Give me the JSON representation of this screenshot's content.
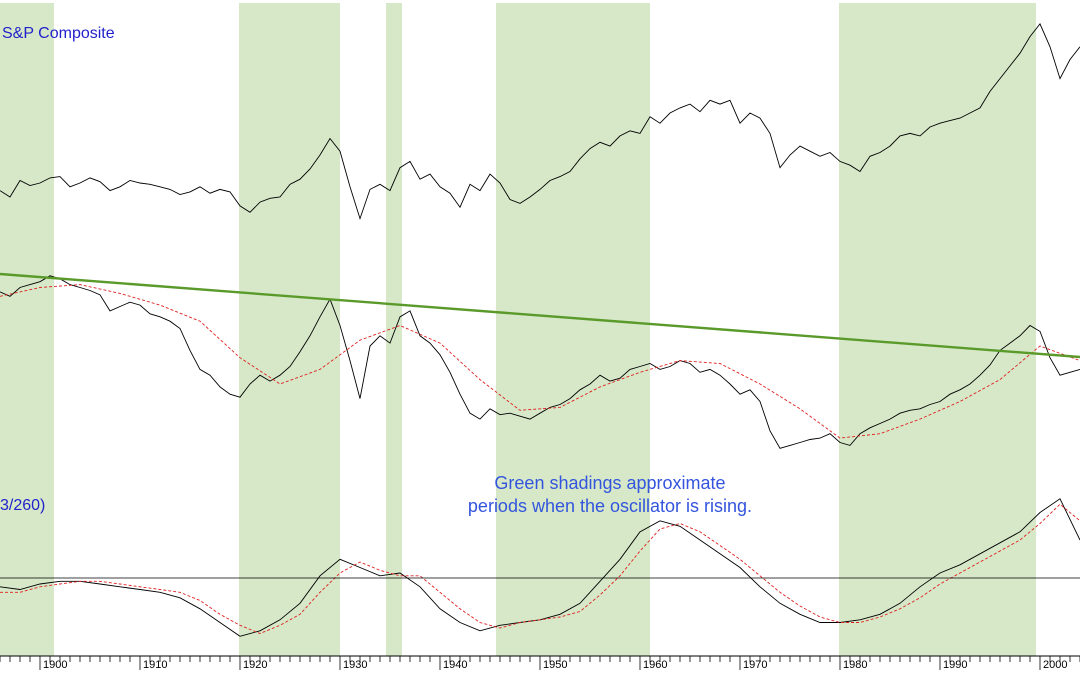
{
  "chart_data": {
    "type": "line",
    "panels": [
      {
        "name": "price",
        "label": "S&P Composite"
      },
      {
        "name": "relative",
        "label": ""
      },
      {
        "name": "oscillator",
        "label": "3/260)"
      }
    ],
    "annotation": {
      "line1": "Green shadings approximate",
      "line2": "periods when the oscillator is rising."
    },
    "xlim": [
      1896.0,
      2004.0
    ],
    "x_ticks": [
      "1900",
      "1910",
      "1920",
      "1930",
      "1940",
      "1950",
      "1960",
      "1970",
      "1980",
      "1990",
      "2000"
    ],
    "shaded_periods": [
      [
        1895.5,
        1901.4
      ],
      [
        1919.9,
        1930.0
      ],
      [
        1934.6,
        1936.2
      ],
      [
        1945.6,
        1961.0
      ],
      [
        1979.9,
        1999.6
      ]
    ],
    "colors": {
      "shading": "#d6e8c8",
      "price": "#000000",
      "trendline": "#5a9a2a",
      "moving_average": "#e02020",
      "label": "#2222cc"
    },
    "series": [
      {
        "name": "price",
        "x": [
          1896,
          1897,
          1898,
          1899,
          1900,
          1901,
          1902,
          1903,
          1904,
          1905,
          1906,
          1907,
          1908,
          1909,
          1910,
          1911,
          1912,
          1913,
          1914,
          1915,
          1916,
          1917,
          1918,
          1919,
          1920,
          1921,
          1922,
          1923,
          1924,
          1925,
          1926,
          1927,
          1928,
          1929,
          1930,
          1931,
          1932,
          1933,
          1934,
          1935,
          1936,
          1937,
          1938,
          1939,
          1940,
          1941,
          1942,
          1943,
          1944,
          1945,
          1946,
          1947,
          1948,
          1949,
          1950,
          1951,
          1952,
          1953,
          1954,
          1955,
          1956,
          1957,
          1958,
          1959,
          1960,
          1961,
          1962,
          1963,
          1964,
          1965,
          1966,
          1967,
          1968,
          1969,
          1970,
          1971,
          1972,
          1973,
          1974,
          1975,
          1976,
          1977,
          1978,
          1979,
          1980,
          1981,
          1982,
          1983,
          1984,
          1985,
          1986,
          1987,
          1988,
          1989,
          1990,
          1991,
          1992,
          1993,
          1994,
          1995,
          1996,
          1997,
          1998,
          1999,
          2000,
          2001,
          2002,
          2003,
          2004
        ],
        "y": [
          27,
          22,
          35,
          31,
          33,
          37,
          38,
          30,
          33,
          37,
          34,
          27,
          30,
          35,
          33,
          32,
          30,
          28,
          24,
          26,
          30,
          25,
          28,
          26,
          15,
          10,
          18,
          21,
          22,
          32,
          36,
          44,
          55,
          68,
          58,
          30,
          5,
          28,
          32,
          27,
          45,
          50,
          36,
          40,
          30,
          25,
          14,
          32,
          27,
          40,
          33,
          20,
          17,
          22,
          28,
          35,
          38,
          42,
          52,
          60,
          65,
          62,
          70,
          74,
          72,
          85,
          80,
          88,
          92,
          95,
          89,
          98,
          95,
          98,
          80,
          88,
          84,
          72,
          45,
          55,
          62,
          58,
          54,
          57,
          50,
          47,
          42,
          54,
          57,
          62,
          70,
          72,
          70,
          77,
          80,
          82,
          84,
          88,
          92,
          105,
          115,
          125,
          135,
          148,
          158,
          140,
          115,
          130,
          140
        ]
      },
      {
        "name": "relative",
        "x": [
          1896,
          1897,
          1898,
          1899,
          1900,
          1901,
          1902,
          1903,
          1904,
          1905,
          1906,
          1907,
          1908,
          1909,
          1910,
          1911,
          1912,
          1913,
          1914,
          1915,
          1916,
          1917,
          1918,
          1919,
          1920,
          1921,
          1922,
          1923,
          1924,
          1925,
          1926,
          1927,
          1928,
          1929,
          1930,
          1931,
          1932,
          1933,
          1934,
          1935,
          1936,
          1937,
          1938,
          1939,
          1940,
          1941,
          1942,
          1943,
          1944,
          1945,
          1946,
          1947,
          1948,
          1949,
          1950,
          1951,
          1952,
          1953,
          1954,
          1955,
          1956,
          1957,
          1958,
          1959,
          1960,
          1961,
          1962,
          1963,
          1964,
          1965,
          1966,
          1967,
          1968,
          1969,
          1970,
          1971,
          1972,
          1973,
          1974,
          1975,
          1976,
          1977,
          1978,
          1979,
          1980,
          1981,
          1982,
          1983,
          1984,
          1985,
          1986,
          1987,
          1988,
          1989,
          1990,
          1991,
          1992,
          1993,
          1994,
          1995,
          1996,
          1997,
          1998,
          1999,
          2000,
          2001,
          2002,
          2003,
          2004
        ],
        "y": [
          75,
          72,
          78,
          80,
          82,
          86,
          84,
          80,
          78,
          76,
          73,
          62,
          65,
          68,
          66,
          60,
          58,
          55,
          50,
          35,
          22,
          18,
          10,
          5,
          3,
          12,
          18,
          14,
          18,
          24,
          34,
          45,
          58,
          70,
          52,
          28,
          2,
          38,
          45,
          40,
          58,
          62,
          45,
          40,
          32,
          20,
          5,
          -8,
          -12,
          -5,
          -9,
          -8,
          -10,
          -12,
          -8,
          -4,
          -2,
          2,
          8,
          12,
          18,
          14,
          16,
          22,
          24,
          26,
          22,
          24,
          28,
          26,
          20,
          22,
          18,
          12,
          5,
          8,
          0,
          -20,
          -32,
          -30,
          -28,
          -26,
          -25,
          -22,
          -28,
          -30,
          -22,
          -18,
          -15,
          -12,
          -8,
          -6,
          -5,
          -2,
          0,
          5,
          8,
          12,
          18,
          25,
          35,
          40,
          45,
          52,
          48,
          30,
          18,
          20,
          22
        ]
      },
      {
        "name": "relative-moving-average",
        "x": [
          1896,
          1900,
          1904,
          1908,
          1912,
          1916,
          1920,
          1924,
          1928,
          1932,
          1936,
          1940,
          1944,
          1948,
          1952,
          1956,
          1960,
          1964,
          1968,
          1972,
          1976,
          1980,
          1984,
          1988,
          1992,
          1996,
          2000,
          2004
        ],
        "y": [
          72,
          78,
          80,
          74,
          66,
          55,
          30,
          12,
          22,
          42,
          52,
          40,
          15,
          -6,
          -4,
          10,
          20,
          28,
          26,
          12,
          -5,
          -25,
          -22,
          -12,
          0,
          15,
          38,
          28
        ]
      },
      {
        "name": "oscillator",
        "x": [
          1896,
          1898,
          1900,
          1902,
          1904,
          1906,
          1908,
          1910,
          1912,
          1914,
          1916,
          1918,
          1920,
          1922,
          1924,
          1926,
          1928,
          1930,
          1932,
          1934,
          1936,
          1938,
          1940,
          1942,
          1944,
          1946,
          1948,
          1950,
          1952,
          1954,
          1956,
          1958,
          1960,
          1962,
          1964,
          1966,
          1968,
          1970,
          1972,
          1974,
          1976,
          1978,
          1980,
          1982,
          1984,
          1986,
          1988,
          1990,
          1992,
          1994,
          1996,
          1998,
          2000,
          2002,
          2004
        ],
        "y": [
          -2,
          -3,
          -1,
          0,
          0,
          -1,
          -2,
          -3,
          -4,
          -6,
          -10,
          -15,
          -20,
          -18,
          -14,
          -8,
          2,
          8,
          5,
          2,
          3,
          -2,
          -10,
          -15,
          -18,
          -16,
          -15,
          -14,
          -12,
          -8,
          0,
          8,
          18,
          22,
          20,
          15,
          10,
          5,
          -2,
          -8,
          -12,
          -15,
          -15,
          -14,
          -12,
          -8,
          -2,
          3,
          6,
          10,
          14,
          18,
          25,
          30,
          15
        ]
      },
      {
        "name": "oscillator-moving-average",
        "x": [
          1896,
          1898,
          1900,
          1902,
          1904,
          1906,
          1908,
          1910,
          1912,
          1914,
          1916,
          1918,
          1920,
          1922,
          1924,
          1926,
          1928,
          1930,
          1932,
          1934,
          1936,
          1938,
          1940,
          1942,
          1944,
          1946,
          1948,
          1950,
          1952,
          1954,
          1956,
          1958,
          1960,
          1962,
          1964,
          1966,
          1968,
          1970,
          1972,
          1974,
          1976,
          1978,
          1980,
          1982,
          1984,
          1986,
          1988,
          1990,
          1992,
          1994,
          1996,
          1998,
          2000,
          2002,
          2004
        ],
        "y": [
          -4,
          -4,
          -2,
          -1,
          0,
          0,
          -1,
          -2,
          -3,
          -4,
          -7,
          -12,
          -16,
          -19,
          -16,
          -12,
          -4,
          3,
          7,
          4,
          2,
          2,
          -4,
          -10,
          -15,
          -17,
          -15,
          -14,
          -13,
          -11,
          -5,
          2,
          11,
          19,
          21,
          18,
          13,
          8,
          2,
          -4,
          -9,
          -13,
          -15,
          -15,
          -13,
          -10,
          -6,
          -1,
          3,
          7,
          11,
          15,
          21,
          28,
          22
        ]
      }
    ]
  }
}
